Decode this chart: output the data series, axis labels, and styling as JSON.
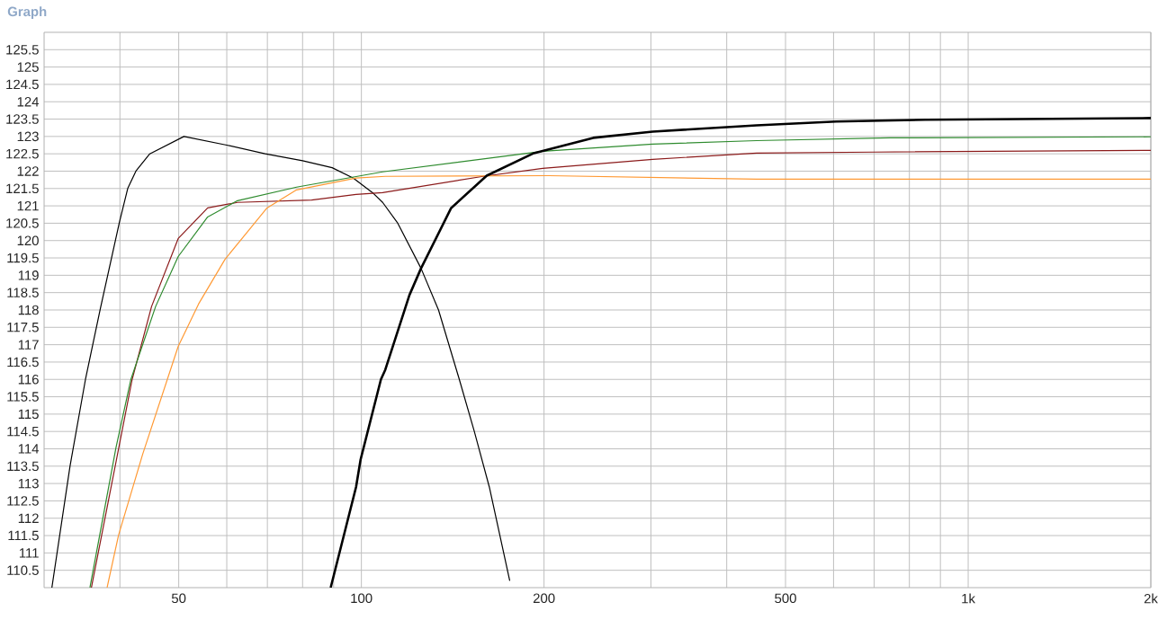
{
  "chart_data": {
    "type": "line",
    "title": "Graph",
    "log": "x",
    "grid": true,
    "xlim": [
      30,
      2000
    ],
    "xticks": [
      {
        "value": 40,
        "label": null
      },
      50,
      {
        "value": 60,
        "label": null
      },
      {
        "value": 70,
        "label": null
      },
      {
        "value": 80,
        "label": null
      },
      {
        "value": 90,
        "label": null
      },
      100,
      200,
      {
        "value": 300,
        "label": null
      },
      {
        "value": 400,
        "label": null
      },
      500,
      {
        "value": 600,
        "label": null
      },
      {
        "value": 700,
        "label": null
      },
      {
        "value": 800,
        "label": null
      },
      {
        "value": 900,
        "label": null
      },
      {
        "value": 1000,
        "label": "1k"
      },
      {
        "value": 2000,
        "label": "2k"
      }
    ],
    "ylim": [
      110,
      126
    ],
    "yticks": [
      110.5,
      111,
      111.5,
      112,
      112.5,
      113,
      113.5,
      114,
      114.5,
      115,
      115.5,
      116,
      116.5,
      117,
      117.5,
      118,
      118.5,
      119,
      119.5,
      120,
      120.5,
      121,
      121.5,
      122,
      122.5,
      123,
      123.5,
      124,
      124.5,
      125,
      125.5
    ],
    "series": [
      {
        "color": "#000000",
        "x": [
          30.9,
          33.1,
          35.1,
          37.1,
          39.9,
          41.2,
          42.5,
          44.8,
          51,
          60,
          69.4,
          80,
          89.5,
          97,
          104.8,
          108.4,
          114.8,
          125.4,
          134,
          145,
          153.5,
          162.5,
          175.6
        ],
        "values": [
          110,
          113.5,
          116,
          118,
          120.5,
          121.5,
          122,
          122.5,
          123,
          122.75,
          122.5,
          122.3,
          122.1,
          121.8,
          121.35,
          121.1,
          120.5,
          119.2,
          118,
          116,
          114.5,
          112.9,
          110.2
        ]
      },
      {
        "color": "#8b1a1a",
        "x": [
          35.9,
          41.9,
          45.1,
          49.9,
          55.8,
          62.5,
          82.8,
          98,
          108.4,
          158.7,
          199,
          302,
          448,
          700,
          2000
        ],
        "values": [
          110,
          116,
          118.1,
          120.06,
          120.94,
          121.1,
          121.17,
          121.33,
          121.38,
          121.85,
          122.08,
          122.34,
          122.52,
          122.55,
          122.6
        ]
      },
      {
        "color": "#2e8b2e",
        "x": [
          35.7,
          39.4,
          41.7,
          45.8,
          49.9,
          55.8,
          62.5,
          78.2,
          108.4,
          199,
          302,
          448,
          743,
          2000
        ],
        "values": [
          110,
          114.02,
          116,
          118.1,
          119.54,
          120.68,
          121.15,
          121.54,
          121.98,
          122.57,
          122.78,
          122.88,
          122.96,
          122.99
        ]
      },
      {
        "color": "#ff9933",
        "x": [
          38.1,
          39.8,
          43.6,
          49.9,
          53.9,
          59.6,
          69.9,
          78.2,
          98,
          109.5,
          203.7,
          448,
          2000
        ],
        "values": [
          110,
          111.51,
          113.84,
          116.95,
          118.17,
          119.46,
          120.94,
          121.46,
          121.8,
          121.85,
          121.87,
          121.77,
          121.77
        ]
      },
      {
        "color": "#000000",
        "x": [
          89,
          98,
          99.7,
          107.7,
          109.5,
          120,
          125.4,
          140.6,
          160.9,
          192.5,
          241,
          302,
          448,
          606,
          850,
          2000
        ],
        "values": [
          110,
          112.9,
          113.69,
          116,
          116.28,
          118.43,
          119.2,
          120.94,
          121.87,
          122.52,
          122.96,
          123.14,
          123.32,
          123.43,
          123.48,
          123.53
        ]
      }
    ]
  }
}
